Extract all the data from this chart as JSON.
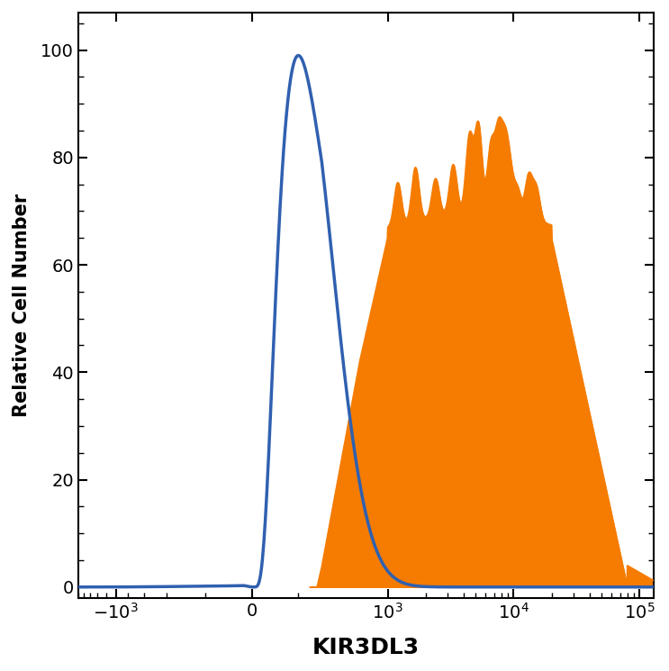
{
  "title": "",
  "xlabel": "KIR3DL3",
  "ylabel": "Relative Cell Number",
  "ylim": [
    -2,
    107
  ],
  "yticks": [
    0,
    20,
    40,
    60,
    80,
    100
  ],
  "background_color": "#ffffff",
  "blue_color": "#3060b0",
  "orange_color": "#f57c00",
  "xlabel_fontsize": 18,
  "ylabel_fontsize": 15,
  "tick_fontsize": 14,
  "line_width": 2.5,
  "linthresh": 300,
  "linscale": 0.5
}
